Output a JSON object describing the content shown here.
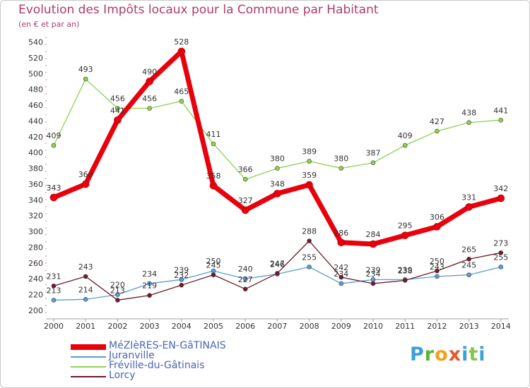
{
  "title": "Evolution des Impôts locaux pour la Commune par Habitant",
  "subtitle": "(en € et par an)",
  "logo": {
    "text": "Proxiti"
  },
  "chart_data": {
    "type": "line",
    "title": "Evolution des Impôts locaux pour la Commune par Habitant",
    "ylabel": "(en € et par an)",
    "xlabel": "",
    "ylim": [
      200,
      540
    ],
    "y_ticks": [
      200,
      220,
      240,
      260,
      280,
      300,
      320,
      340,
      360,
      380,
      400,
      420,
      440,
      460,
      480,
      500,
      520,
      540
    ],
    "categories": [
      "2000",
      "2001",
      "2002",
      "2003",
      "2004",
      "2005",
      "2006",
      "2007",
      "2008",
      "2009",
      "2010",
      "2011",
      "2012",
      "2013",
      "2014"
    ],
    "grid": false,
    "legend_position": "bottom-left",
    "series": [
      {
        "name": "MéZIèRES-EN-GâTINAIS",
        "color": "#e8000c",
        "values": [
          343,
          360,
          441,
          490,
          528,
          358,
          327,
          348,
          359,
          286,
          284,
          295,
          306,
          331,
          342
        ]
      },
      {
        "name": "Juranville",
        "color": "#5b9bd5",
        "values": [
          213,
          214,
          220,
          234,
          239,
          250,
          240,
          246,
          255,
          234,
          239,
          239,
          243,
          245,
          255
        ]
      },
      {
        "name": "Fréville-du-Gâtinais",
        "color": "#8fd14f",
        "values": [
          409,
          493,
          456,
          456,
          465,
          411,
          366,
          380,
          389,
          380,
          387,
          409,
          427,
          438,
          441
        ]
      },
      {
        "name": "Lorcy",
        "color": "#6b1c26",
        "values": [
          231,
          243,
          213,
          219,
          232,
          245,
          227,
          247,
          288,
          242,
          234,
          238,
          250,
          265,
          273
        ]
      }
    ]
  }
}
